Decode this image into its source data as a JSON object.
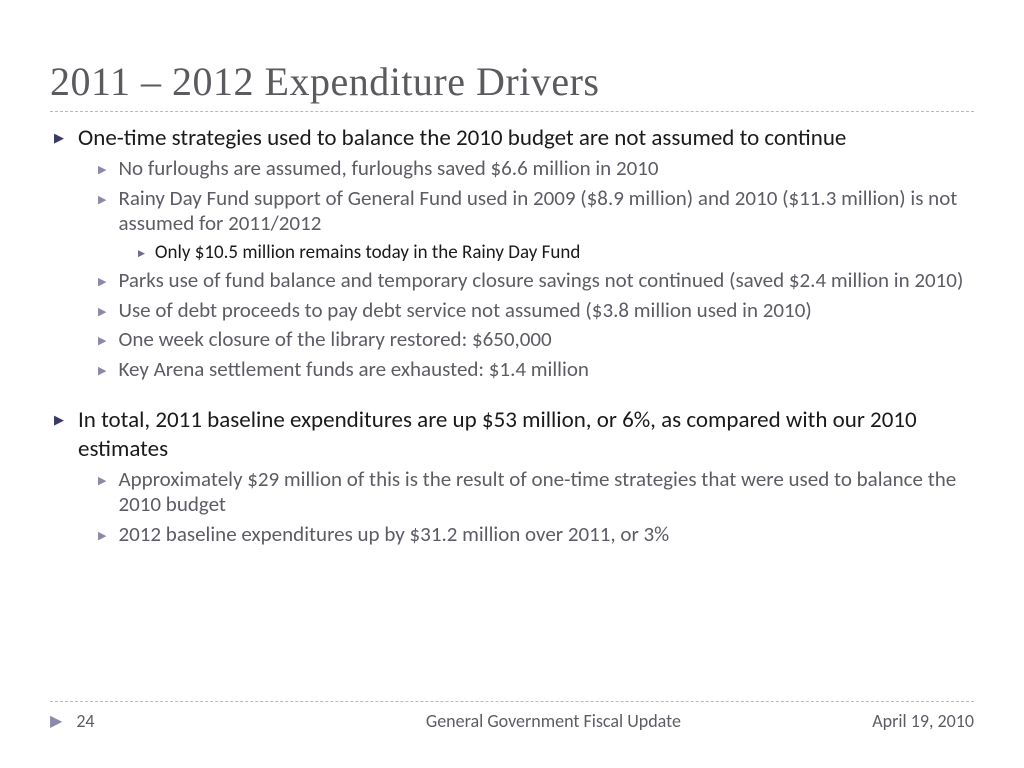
{
  "title": "2011 – 2012 Expenditure Drivers",
  "colors": {
    "title_text": "#5a5a5f",
    "body_text": "#1a1a1a",
    "sub_text": "#5c5c64",
    "bullet_dark": "#3a3a6a",
    "bullet_light": "#8a8aa8",
    "divider": "#b8b8c0",
    "background": "#ffffff"
  },
  "typography": {
    "title_family": "Georgia",
    "title_size_pt": 30,
    "body_family": "Gill Sans",
    "l1_size_pt": 17,
    "l2_size_pt": 16,
    "l3_size_pt": 14
  },
  "bullets": [
    {
      "level": 1,
      "text": "One-time strategies used to balance the 2010 budget are not assumed to continue"
    },
    {
      "level": 2,
      "text": "No furloughs are assumed, furloughs saved $6.6 million in 2010"
    },
    {
      "level": 2,
      "text": "Rainy Day Fund support of General Fund used in 2009 ($8.9 million) and 2010 ($11.3 million) is not assumed for 2011/2012"
    },
    {
      "level": 3,
      "text": "Only $10.5 million remains today in the Rainy Day Fund"
    },
    {
      "level": 2,
      "text": "Parks use of fund balance and temporary closure savings not continued (saved $2.4 million in 2010)"
    },
    {
      "level": 2,
      "text": "Use of debt proceeds to pay debt service not assumed ($3.8 million used in 2010)"
    },
    {
      "level": 2,
      "text": "One week closure of the library restored: $650,000"
    },
    {
      "level": 2,
      "text": "Key Arena settlement funds are exhausted:  $1.4 million"
    },
    {
      "level": 0,
      "text": ""
    },
    {
      "level": 1,
      "text": "In total, 2011 baseline expenditures are up $53 million, or 6%, as compared with our 2010 estimates"
    },
    {
      "level": 2,
      "text": "Approximately $29 million of this is the result of one-time strategies that were used to balance the 2010 budget"
    },
    {
      "level": 2,
      "text": "2012 baseline expenditures up by $31.2 million over 2011, or 3%"
    }
  ],
  "footer": {
    "page": "24",
    "center": "General Government Fiscal Update",
    "date": "April 19, 2010"
  }
}
